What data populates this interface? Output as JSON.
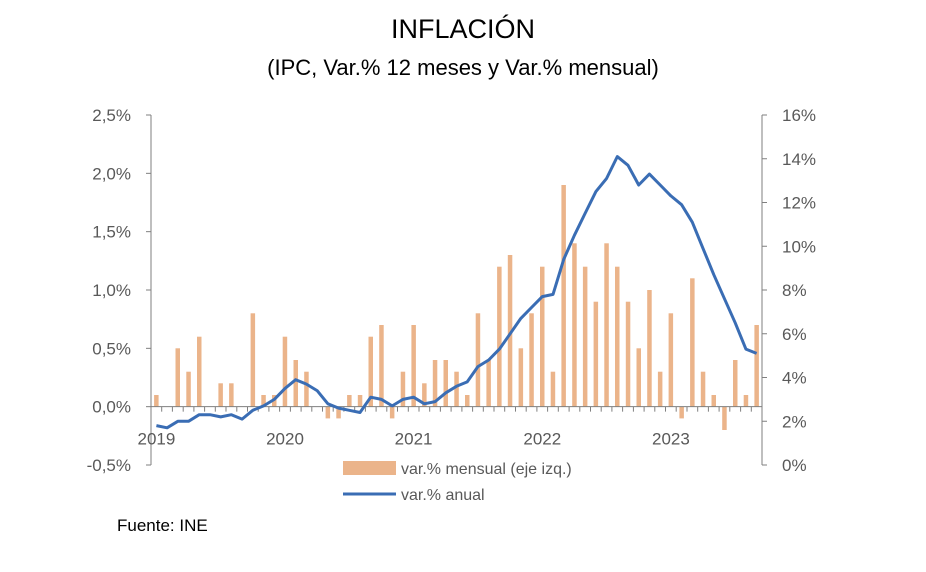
{
  "title": "INFLACIÓN",
  "subtitle": "(IPC, Var.% 12 meses y Var.% mensual)",
  "source": "Fuente: INE",
  "colors": {
    "bar": "#EBB48A",
    "line": "#3A6DB4",
    "axis": "#7F7F7F",
    "text": "#595959"
  },
  "chart_data": {
    "type": "bar+line",
    "title": "INFLACIÓN",
    "subtitle": "(IPC, Var.% 12 meses y Var.% mensual)",
    "x_start": "2019-01",
    "x_end": "2023-09",
    "year_labels": [
      "2019",
      "2020",
      "2021",
      "2022",
      "2023"
    ],
    "left_axis": {
      "ylim": [
        -0.5,
        2.5
      ],
      "ticks": [
        -0.5,
        0.0,
        0.5,
        1.0,
        1.5,
        2.0,
        2.5
      ],
      "tick_labels": [
        "-0,5%",
        "0,0%",
        "0,5%",
        "1,0%",
        "1,5%",
        "2,0%",
        "2,5%"
      ]
    },
    "right_axis": {
      "ylim": [
        0,
        16
      ],
      "ticks": [
        0,
        2,
        4,
        6,
        8,
        10,
        12,
        14,
        16
      ],
      "tick_labels": [
        "0%",
        "2%",
        "4%",
        "6%",
        "8%",
        "10%",
        "12%",
        "14%",
        "16%"
      ]
    },
    "grid": false,
    "legend_position": "bottom",
    "series": [
      {
        "name": "var.% mensual (eje izq.)",
        "type": "bar",
        "axis": "left",
        "values": [
          0.1,
          0.0,
          0.5,
          0.3,
          0.6,
          0.0,
          0.2,
          0.2,
          0.0,
          0.8,
          0.1,
          0.1,
          0.6,
          0.4,
          0.3,
          0.0,
          -0.1,
          -0.1,
          0.1,
          0.1,
          0.6,
          0.7,
          -0.1,
          0.3,
          0.7,
          0.2,
          0.4,
          0.4,
          0.3,
          0.1,
          0.8,
          0.4,
          1.2,
          1.3,
          0.5,
          0.8,
          1.2,
          0.3,
          1.9,
          1.4,
          1.2,
          0.9,
          1.4,
          1.2,
          0.9,
          0.5,
          1.0,
          0.3,
          0.8,
          -0.1,
          1.1,
          0.3,
          0.1,
          -0.2,
          0.4,
          0.1,
          0.7
        ]
      },
      {
        "name": "var.% anual",
        "type": "line",
        "axis": "right",
        "values": [
          1.8,
          1.7,
          2.0,
          2.0,
          2.3,
          2.3,
          2.2,
          2.3,
          2.1,
          2.5,
          2.7,
          3.0,
          3.5,
          3.9,
          3.7,
          3.4,
          2.8,
          2.6,
          2.5,
          2.4,
          3.1,
          3.0,
          2.7,
          3.0,
          3.1,
          2.8,
          2.9,
          3.3,
          3.6,
          3.8,
          4.5,
          4.8,
          5.3,
          6.0,
          6.7,
          7.2,
          7.7,
          7.8,
          9.4,
          10.5,
          11.5,
          12.5,
          13.1,
          14.1,
          13.7,
          12.8,
          13.3,
          12.8,
          12.3,
          11.9,
          11.1,
          9.9,
          8.7,
          7.6,
          6.5,
          5.3,
          5.1
        ]
      }
    ]
  }
}
